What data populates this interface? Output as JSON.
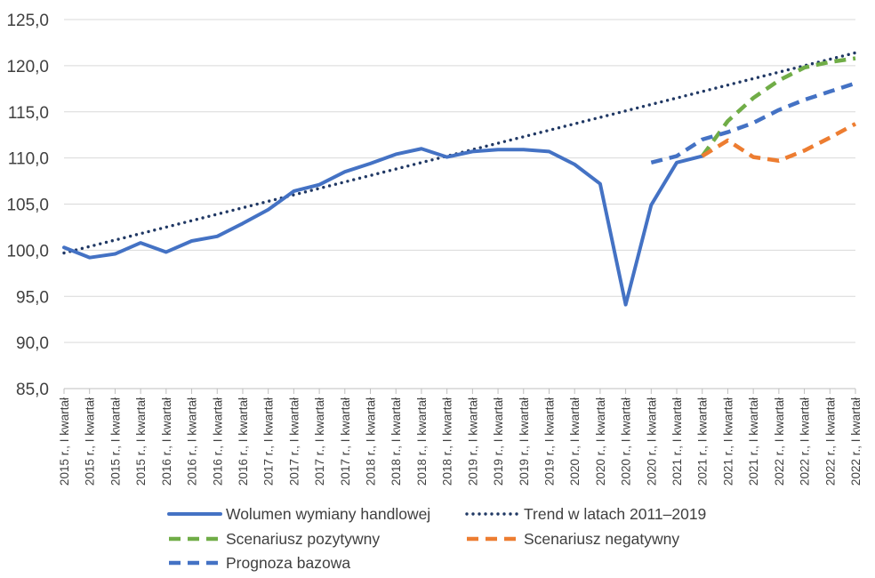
{
  "chart_data": {
    "type": "line",
    "title": "",
    "xlabel": "",
    "ylabel": "",
    "ylim": [
      85,
      125
    ],
    "y_ticks": [
      "85,0",
      "90,0",
      "95,0",
      "100,0",
      "105,0",
      "110,0",
      "115,0",
      "120,0",
      "125,0"
    ],
    "grid": "horizontal",
    "legend_position": "bottom",
    "categories": [
      "2015 r., I kwartał",
      "2015 r., I kwartał",
      "2015 r., I kwartał",
      "2015 r., I kwartał",
      "2016 r., I kwartał",
      "2016 r., I kwartał",
      "2016 r., I kwartał",
      "2016 r., I kwartał",
      "2017 r., I kwartał",
      "2017 r., I kwartał",
      "2017 r., I kwartał",
      "2017 r., I kwartał",
      "2018 r., I kwartał",
      "2018 r., I kwartał",
      "2018 r., I kwartał",
      "2018 r., I kwartał",
      "2019 r., I kwartał",
      "2019 r., I kwartał",
      "2019 r., I kwartał",
      "2019 r., I kwartał",
      "2020 r., I kwartał",
      "2020 r., I kwartał",
      "2020 r., I kwartał",
      "2020 r., I kwartał",
      "2021 r., I kwartał",
      "2021 r., I kwartał",
      "2021 r., I kwartał",
      "2021 r., I kwartał",
      "2022 r., I kwartał",
      "2022 r., I kwartał",
      "2022 r., I kwartał",
      "2022 r., I kwartał"
    ],
    "series": [
      {
        "name": "Wolumen wymiany handlowej",
        "color": "#4472c4",
        "style": "solid",
        "values": [
          100.3,
          99.2,
          99.6,
          100.8,
          99.8,
          101.0,
          101.5,
          102.9,
          104.4,
          106.4,
          107.1,
          108.5,
          109.4,
          110.4,
          111.0,
          110.1,
          110.7,
          110.9,
          110.9,
          110.7,
          109.3,
          107.2,
          94.1,
          104.9,
          109.5,
          110.2,
          null,
          null,
          null,
          null,
          null,
          null
        ]
      },
      {
        "name": "Trend w latach 2011–2019",
        "color": "#203864",
        "style": "dotted",
        "values": [
          99.7,
          100.4,
          101.1,
          101.8,
          102.5,
          103.2,
          103.9,
          104.6,
          105.3,
          106.0,
          106.7,
          107.4,
          108.1,
          108.8,
          109.5,
          110.2,
          110.9,
          111.6,
          112.3,
          113.0,
          113.7,
          114.4,
          115.1,
          115.8,
          116.5,
          117.2,
          117.9,
          118.6,
          119.3,
          120.0,
          120.7,
          121.4
        ]
      },
      {
        "name": "Scenariusz pozytywny",
        "color": "#70ad47",
        "style": "dashed",
        "values": [
          null,
          null,
          null,
          null,
          null,
          null,
          null,
          null,
          null,
          null,
          null,
          null,
          null,
          null,
          null,
          null,
          null,
          null,
          null,
          null,
          null,
          null,
          null,
          null,
          null,
          110.2,
          114.0,
          116.5,
          118.4,
          119.8,
          120.4,
          120.8
        ]
      },
      {
        "name": "Scenariusz negatywny",
        "color": "#ed7d31",
        "style": "dashed",
        "values": [
          null,
          null,
          null,
          null,
          null,
          null,
          null,
          null,
          null,
          null,
          null,
          null,
          null,
          null,
          null,
          null,
          null,
          null,
          null,
          null,
          null,
          null,
          null,
          null,
          null,
          110.2,
          111.9,
          110.1,
          109.7,
          110.8,
          112.2,
          113.7
        ]
      },
      {
        "name": "Prognoza bazowa",
        "color": "#4472c4",
        "style": "dashed",
        "values": [
          null,
          null,
          null,
          null,
          null,
          null,
          null,
          null,
          null,
          null,
          null,
          null,
          null,
          null,
          null,
          null,
          null,
          null,
          null,
          null,
          null,
          null,
          null,
          109.5,
          110.2,
          112.0,
          112.8,
          113.8,
          115.2,
          116.3,
          117.2,
          118.1
        ]
      }
    ]
  }
}
